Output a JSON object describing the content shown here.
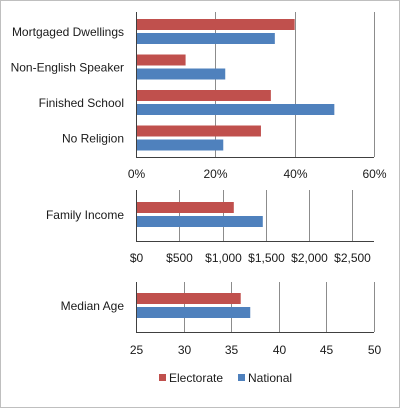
{
  "chart_data": [
    {
      "type": "bar",
      "orientation": "horizontal",
      "categories": [
        "Mortgaged Dwellings",
        "Non-English Speaker",
        "Finished School",
        "No Religion"
      ],
      "series": [
        {
          "name": "Electorate",
          "values": [
            40,
            12.5,
            34,
            31.5
          ]
        },
        {
          "name": "National",
          "values": [
            35,
            22.5,
            50,
            22
          ]
        }
      ],
      "xlim": [
        0,
        60
      ],
      "xticks": [
        "0%",
        "20%",
        "40%",
        "60%"
      ],
      "grid": true
    },
    {
      "type": "bar",
      "orientation": "horizontal",
      "categories": [
        "Family Income"
      ],
      "series": [
        {
          "name": "Electorate",
          "values": [
            1130
          ]
        },
        {
          "name": "National",
          "values": [
            1465
          ]
        }
      ],
      "xlim": [
        0,
        2750
      ],
      "xticks": [
        "$0",
        "$500",
        "$1,000",
        "$1,500",
        "$2,000",
        "$2,500"
      ],
      "grid": true
    },
    {
      "type": "bar",
      "orientation": "horizontal",
      "categories": [
        "Median Age"
      ],
      "series": [
        {
          "name": "Electorate",
          "values": [
            36
          ]
        },
        {
          "name": "National",
          "values": [
            37
          ]
        }
      ],
      "xlim": [
        25,
        50
      ],
      "xticks": [
        "25",
        "30",
        "35",
        "40",
        "45",
        "50"
      ],
      "grid": true
    }
  ],
  "legend": {
    "placement": "bottom",
    "items": [
      {
        "label": "Electorate",
        "color": "#c0504d"
      },
      {
        "label": "National",
        "color": "#4f81bd"
      }
    ]
  }
}
